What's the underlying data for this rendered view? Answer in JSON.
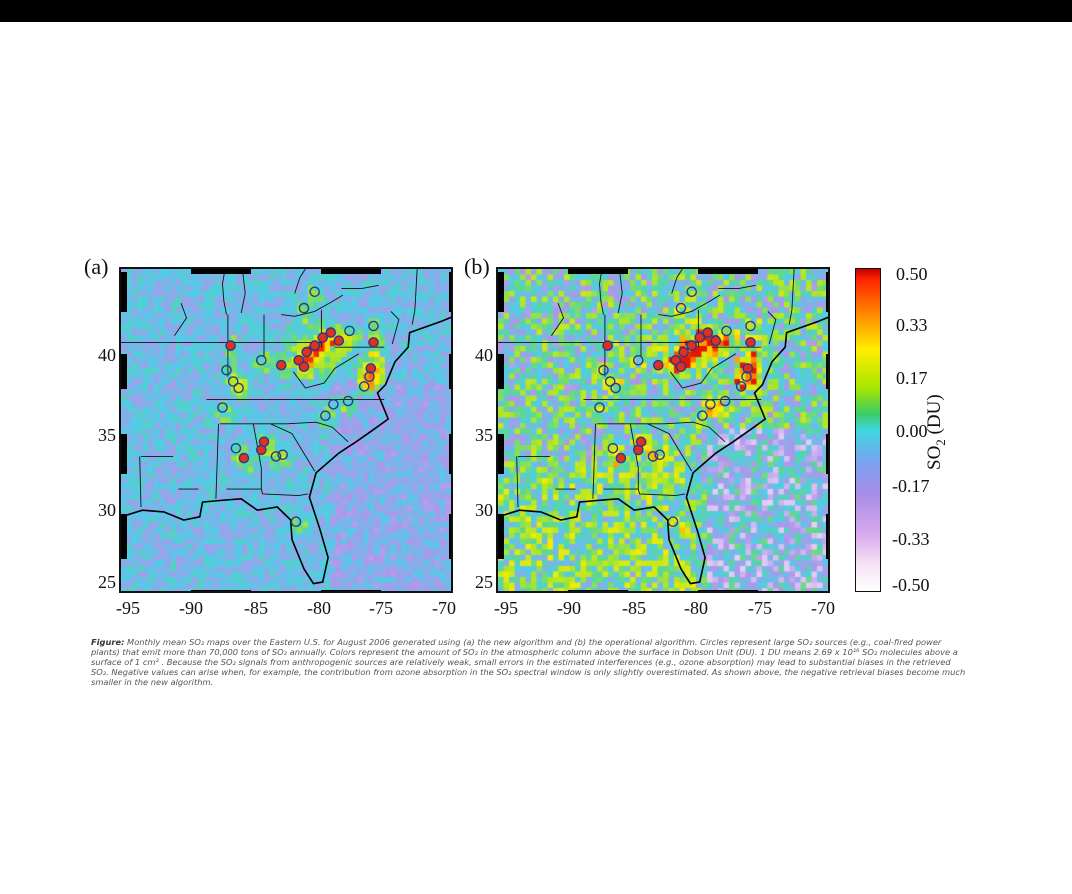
{
  "panel_a": {
    "label": "(a)"
  },
  "panel_b": {
    "label": "(b)"
  },
  "x_ticks": [
    "-95",
    "-90",
    "-85",
    "-80",
    "-75",
    "-70"
  ],
  "y_ticks": [
    "40",
    "35",
    "30",
    "25"
  ],
  "colorbar": {
    "ticks": [
      "0.50",
      "0.33",
      "0.17",
      "0.00",
      "-0.17",
      "-0.33",
      "-0.50"
    ],
    "title": "SO",
    "title_sub": "2",
    "title_unit": " (DU)",
    "range": [
      -0.5,
      0.5
    ]
  },
  "caption": {
    "lead": "Figure:",
    "text": " Monthly mean SO₂ maps over the Eastern U.S. for August 2006 generated using (a) the new algorithm and (b) the operational algorithm. Circles represent large SO₂ sources (e.g., coal-fired power plants) that emit more than 70,000 tons of SO₂ annually. Colors represent the amount of SO₂ in the atmospheric column above the surface in Dobson Unit (DU). 1 DU means 2.69 x 10¹⁶ SO₂ molecules above a surface of 1 cm² . Because the SO₂ signals from anthropogenic sources are relatively weak, small errors in the estimated interferences (e.g., ozone absorption) may lead to substantial biases in the retrieved SO₂. Negative values can arise when, for example, the contribution from ozone absorption in the SO₂ spectral window is only slightly overestimated. As shown above, the negative retrieval biases become much smaller in the new algorithm."
  },
  "map": {
    "lon_range": [
      -95.5,
      -70.5
    ],
    "lat_range": [
      24.5,
      44.5
    ],
    "sources": [
      {
        "lon": -81.0,
        "lat": 43.1
      },
      {
        "lon": -81.8,
        "lat": 42.1
      },
      {
        "lon": -87.3,
        "lat": 39.8
      },
      {
        "lon": -87.6,
        "lat": 38.3
      },
      {
        "lon": -87.1,
        "lat": 37.6
      },
      {
        "lon": -86.7,
        "lat": 37.2
      },
      {
        "lon": -85.0,
        "lat": 38.9
      },
      {
        "lon": -83.5,
        "lat": 38.6
      },
      {
        "lon": -82.2,
        "lat": 38.9
      },
      {
        "lon": -81.8,
        "lat": 38.5
      },
      {
        "lon": -81.6,
        "lat": 39.4
      },
      {
        "lon": -81.0,
        "lat": 39.8
      },
      {
        "lon": -80.4,
        "lat": 40.3
      },
      {
        "lon": -79.8,
        "lat": 40.6
      },
      {
        "lon": -79.2,
        "lat": 40.1
      },
      {
        "lon": -78.4,
        "lat": 40.7
      },
      {
        "lon": -76.6,
        "lat": 41.0
      },
      {
        "lon": -76.6,
        "lat": 40.0
      },
      {
        "lon": -76.8,
        "lat": 38.4
      },
      {
        "lon": -76.9,
        "lat": 37.9
      },
      {
        "lon": -77.3,
        "lat": 37.3
      },
      {
        "lon": -78.5,
        "lat": 36.4
      },
      {
        "lon": -79.6,
        "lat": 36.2
      },
      {
        "lon": -80.2,
        "lat": 35.5
      },
      {
        "lon": -87.9,
        "lat": 36.0
      },
      {
        "lon": -86.9,
        "lat": 33.5
      },
      {
        "lon": -86.3,
        "lat": 32.9
      },
      {
        "lon": -85.0,
        "lat": 33.4
      },
      {
        "lon": -84.8,
        "lat": 33.9
      },
      {
        "lon": -83.9,
        "lat": 33.0
      },
      {
        "lon": -83.4,
        "lat": 33.1
      },
      {
        "lon": -82.4,
        "lat": 29.0
      }
    ],
    "hot_sources": [
      2,
      7,
      8,
      9,
      10,
      11,
      12,
      13,
      14,
      17,
      18,
      26,
      27,
      28
    ],
    "colors": {
      "low": "#ffffff",
      "negative": "#a88ce6",
      "zero": "#40d6e0",
      "mid": "#3ccc66",
      "high": "#ffee00",
      "very_high": "#ff2200",
      "circle_edge": "#2a3a8c",
      "circle_fill_hot": "#e0301e"
    }
  }
}
